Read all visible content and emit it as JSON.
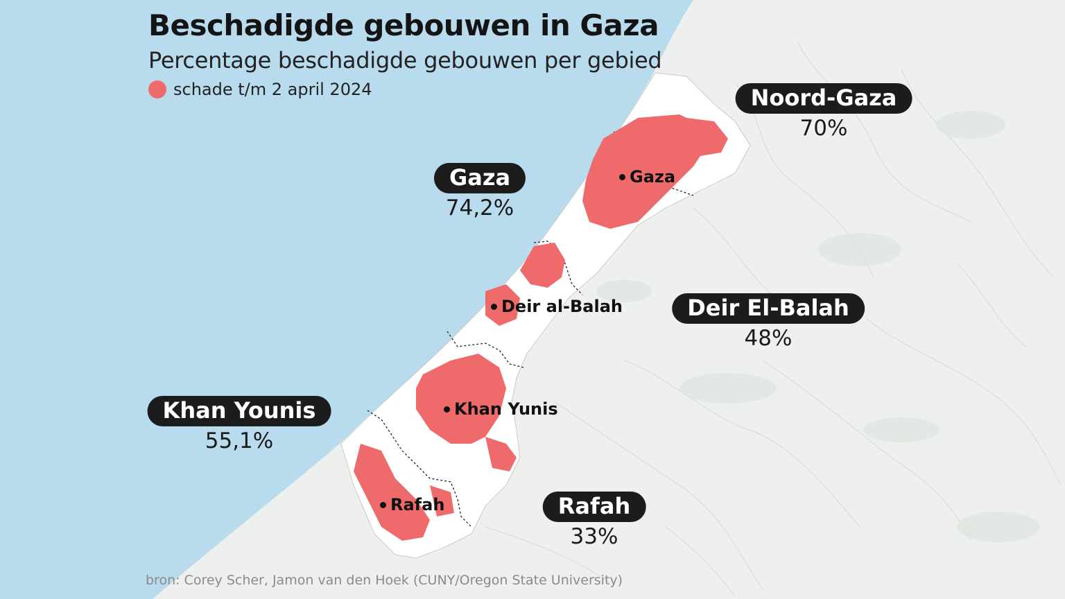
{
  "title": "Beschadigde gebouwen in Gaza",
  "subtitle": "Percentage beschadigde gebouwen per gebied",
  "legend": {
    "label": "schade t/m 2 april 2024",
    "color": "#ef6b6b"
  },
  "colors": {
    "sea": "#b8dcee",
    "land": "#eef0ee",
    "strip": "#ffffff",
    "damage": "#ef6b6b",
    "pill": "#1c1c1c"
  },
  "regions": [
    {
      "name": "Noord-Gaza",
      "value": "70%"
    },
    {
      "name": "Gaza",
      "value": "74,2%"
    },
    {
      "name": "Deir El-Balah",
      "value": "48%"
    },
    {
      "name": "Khan Younis",
      "value": "55,1%"
    },
    {
      "name": "Rafah",
      "value": "33%"
    }
  ],
  "cities": [
    "Gaza",
    "Deir al-Balah",
    "Khan Yunis",
    "Rafah"
  ],
  "source": "bron: Corey Scher, Jamon van den Hoek (CUNY/Oregon State University)"
}
